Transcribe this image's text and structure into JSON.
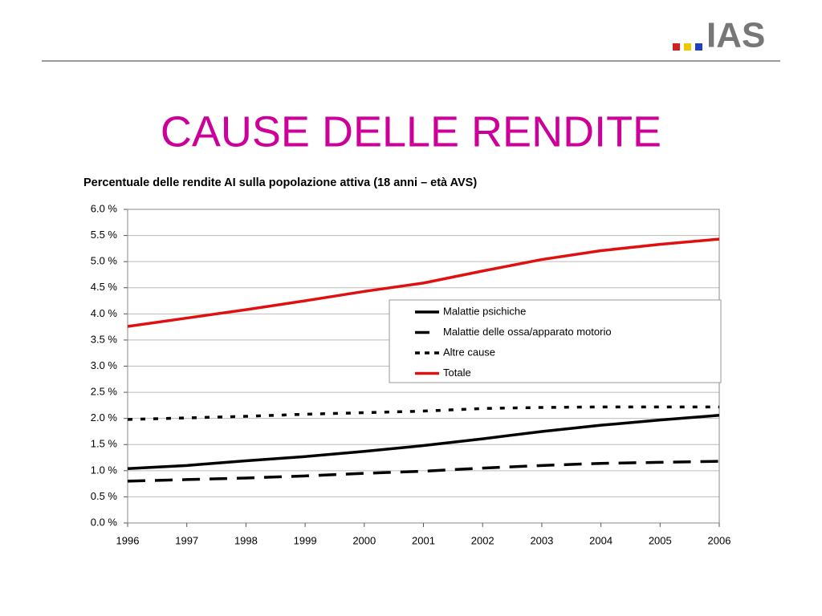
{
  "header": {
    "logo": "IAS",
    "title": "CAUSE DELLE RENDITE"
  },
  "chart_data": {
    "type": "line",
    "subtitle": "Percentuale delle rendite AI sulla popolazione attiva (18 anni – età AVS)",
    "x": [
      1996,
      1997,
      1998,
      1999,
      2000,
      2001,
      2002,
      2003,
      2004,
      2005,
      2006
    ],
    "xlim": [
      1996,
      2006
    ],
    "xticks": [
      1996,
      1997,
      1998,
      1999,
      2000,
      2001,
      2002,
      2003,
      2004,
      2005,
      2006
    ],
    "ylim": [
      0,
      6
    ],
    "yticks": [
      {
        "value": 0,
        "label": "0.0 %"
      },
      {
        "value": 0.5,
        "label": "0.5 %"
      },
      {
        "value": 1,
        "label": "1.0 %"
      },
      {
        "value": 1.5,
        "label": "1.5 %"
      },
      {
        "value": 2,
        "label": "2.0 %"
      },
      {
        "value": 2.5,
        "label": "2.5 %"
      },
      {
        "value": 3,
        "label": "3.0 %"
      },
      {
        "value": 3.5,
        "label": "3.5 %"
      },
      {
        "value": 4,
        "label": "4.0 %"
      },
      {
        "value": 4.5,
        "label": "4.5 %"
      },
      {
        "value": 5,
        "label": "5.0 %"
      },
      {
        "value": 5.5,
        "label": "5.5 %"
      },
      {
        "value": 6,
        "label": "6.0 %"
      }
    ],
    "grid": true,
    "legend": "right",
    "series": [
      {
        "name": "Malattie psichiche",
        "color": "#000000",
        "dash": "solid",
        "values": [
          1.04,
          1.1,
          1.19,
          1.27,
          1.37,
          1.48,
          1.61,
          1.75,
          1.87,
          1.97,
          2.06
        ]
      },
      {
        "name": "Malattie delle ossa/apparato motorio",
        "color": "#000000",
        "dash": "long-dash",
        "values": [
          0.8,
          0.83,
          0.86,
          0.9,
          0.95,
          0.99,
          1.05,
          1.1,
          1.14,
          1.16,
          1.18
        ]
      },
      {
        "name": "Altre cause",
        "color": "#000000",
        "dash": "dot",
        "values": [
          1.98,
          2.01,
          2.04,
          2.08,
          2.11,
          2.14,
          2.19,
          2.21,
          2.22,
          2.22,
          2.22
        ]
      },
      {
        "name": "Totale",
        "color": "#e01010",
        "dash": "solid",
        "values": [
          3.76,
          3.92,
          4.08,
          4.25,
          4.43,
          4.59,
          4.82,
          5.04,
          5.21,
          5.33,
          5.43
        ]
      }
    ]
  }
}
